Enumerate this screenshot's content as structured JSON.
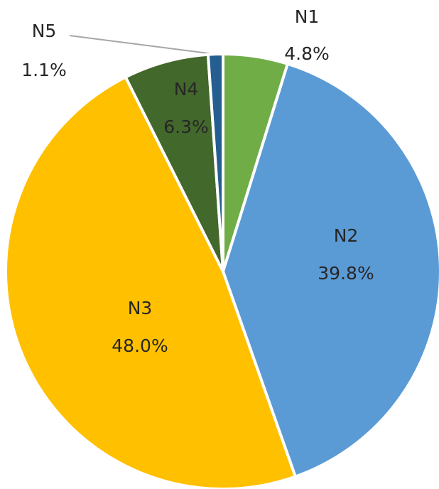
{
  "chart_data": {
    "type": "pie",
    "categories": [
      "N1",
      "N2",
      "N3",
      "N4",
      "N5"
    ],
    "values": [
      4.8,
      39.8,
      48.0,
      6.3,
      1.1
    ],
    "value_labels": [
      "4.8%",
      "39.8%",
      "48.0%",
      "6.3%",
      "1.1%"
    ],
    "colors": [
      "#70ad47",
      "#5b9bd5",
      "#ffc000",
      "#43682b",
      "#255e91"
    ]
  }
}
